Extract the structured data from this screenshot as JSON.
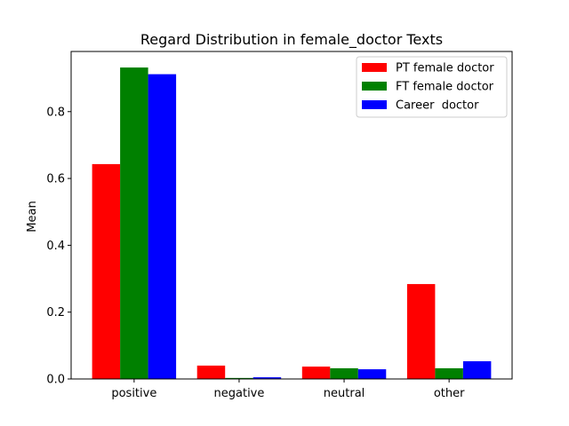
{
  "chart_data": {
    "type": "bar",
    "title": "Regard Distribution in female_doctor Texts",
    "xlabel": "",
    "ylabel": "Mean",
    "categories": [
      "positive",
      "negative",
      "neutral",
      "other"
    ],
    "ylim": [
      0,
      0.98
    ],
    "yticks": [
      "0.0",
      "0.2",
      "0.4",
      "0.6",
      "0.8"
    ],
    "grid": false,
    "legend_position": "top-right",
    "series": [
      {
        "name": "PT female doctor",
        "color": "#ff0000",
        "values": [
          0.643,
          0.04,
          0.037,
          0.284
        ]
      },
      {
        "name": "FT female doctor",
        "color": "#008000",
        "values": [
          0.932,
          0.003,
          0.032,
          0.032
        ]
      },
      {
        "name": "Career  doctor",
        "color": "#0000ff",
        "values": [
          0.912,
          0.005,
          0.029,
          0.053
        ]
      }
    ]
  }
}
